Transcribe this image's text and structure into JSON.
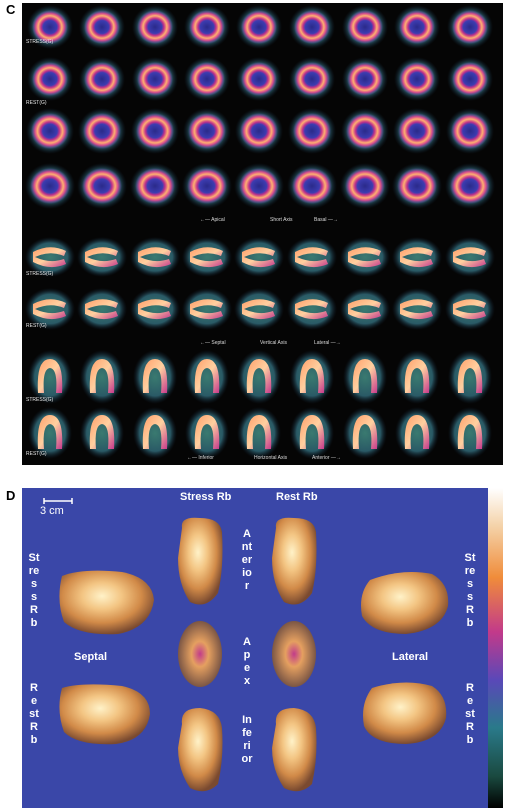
{
  "panel_c": {
    "label": "C",
    "row_labels": [
      "STRESS(G)",
      "REST(G)",
      "STRESS(G)",
      "REST(G)",
      "STRESS(G)",
      "REST(G)"
    ],
    "axis_short": {
      "left": "←— Apical",
      "mid": "Short Axis",
      "right": "Basal —→"
    },
    "axis_vertical": {
      "left": "←— Septal",
      "mid": "Vertical Axis",
      "right": "Lateral —→"
    },
    "axis_horizontal": {
      "left": "←— Inferior",
      "mid": "Horizontal Axis",
      "right": "Anterior —→"
    }
  },
  "panel_d": {
    "label": "D",
    "scale_text": "3 cm",
    "stress_rb": "Stress Rb",
    "rest_rb": "Rest Rb",
    "septal": "Septal",
    "lateral": "Lateral",
    "anterior": "Anterior",
    "apex": "Apex",
    "inferior": "Inferior",
    "left_stress": "Stress Rb",
    "left_rest": "Rest Rb",
    "right_stress": "Stress Rb",
    "right_rest": "Rest Rb"
  },
  "colors": {
    "background_c": "#050505",
    "background_d": "#3a47a8",
    "myocardium_hot": "#ffc080",
    "myocardium_mid": "#c8308c",
    "halo": "#2f7a5a"
  }
}
